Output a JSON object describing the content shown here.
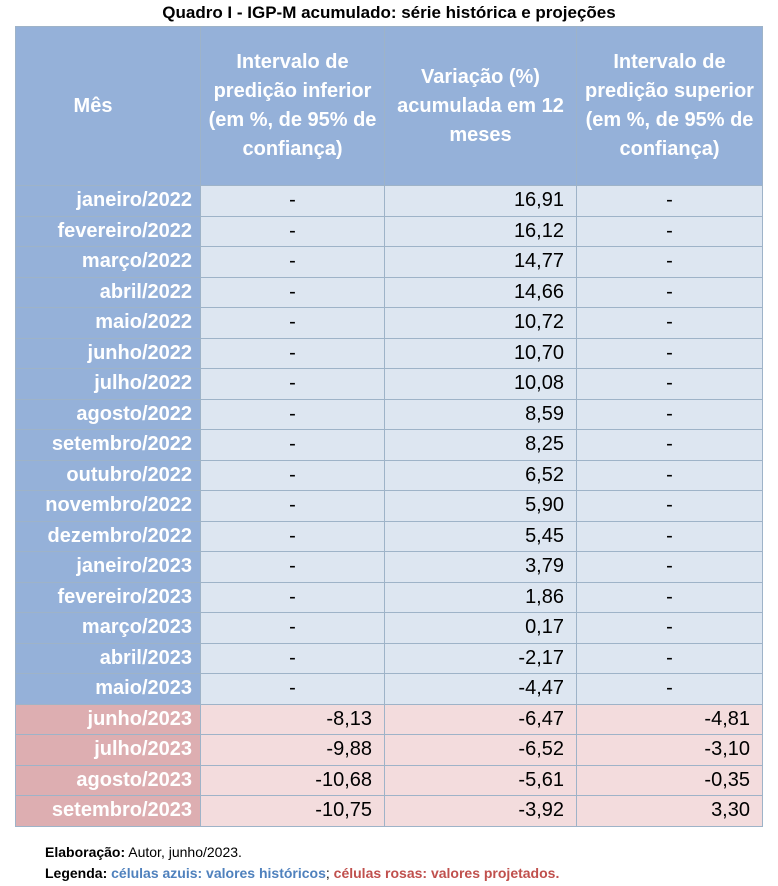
{
  "title": "Quadro I - IGP-M acumulado: série histórica e projeções",
  "headers": {
    "mes": "Mês",
    "inferior": "Intervalo de predição inferior (em %, de 95% de confiança)",
    "variacao": "Variação (%) acumulada em 12 meses",
    "superior": "Intervalo de predição superior (em %, de 95% de confiança)"
  },
  "rows": [
    {
      "mes": "janeiro/2022",
      "inferior": "-",
      "variacao": "16,91",
      "superior": "-",
      "kind": "hist"
    },
    {
      "mes": "fevereiro/2022",
      "inferior": "-",
      "variacao": "16,12",
      "superior": "-",
      "kind": "hist"
    },
    {
      "mes": "março/2022",
      "inferior": "-",
      "variacao": "14,77",
      "superior": "-",
      "kind": "hist"
    },
    {
      "mes": "abril/2022",
      "inferior": "-",
      "variacao": "14,66",
      "superior": "-",
      "kind": "hist"
    },
    {
      "mes": "maio/2022",
      "inferior": "-",
      "variacao": "10,72",
      "superior": "-",
      "kind": "hist"
    },
    {
      "mes": "junho/2022",
      "inferior": "-",
      "variacao": "10,70",
      "superior": "-",
      "kind": "hist"
    },
    {
      "mes": "julho/2022",
      "inferior": "-",
      "variacao": "10,08",
      "superior": "-",
      "kind": "hist"
    },
    {
      "mes": "agosto/2022",
      "inferior": "-",
      "variacao": "8,59",
      "superior": "-",
      "kind": "hist"
    },
    {
      "mes": "setembro/2022",
      "inferior": "-",
      "variacao": "8,25",
      "superior": "-",
      "kind": "hist"
    },
    {
      "mes": "outubro/2022",
      "inferior": "-",
      "variacao": "6,52",
      "superior": "-",
      "kind": "hist"
    },
    {
      "mes": "novembro/2022",
      "inferior": "-",
      "variacao": "5,90",
      "superior": "-",
      "kind": "hist"
    },
    {
      "mes": "dezembro/2022",
      "inferior": "-",
      "variacao": "5,45",
      "superior": "-",
      "kind": "hist"
    },
    {
      "mes": "janeiro/2023",
      "inferior": "-",
      "variacao": "3,79",
      "superior": "-",
      "kind": "hist"
    },
    {
      "mes": "fevereiro/2023",
      "inferior": "-",
      "variacao": "1,86",
      "superior": "-",
      "kind": "hist"
    },
    {
      "mes": "março/2023",
      "inferior": "-",
      "variacao": "0,17",
      "superior": "-",
      "kind": "hist"
    },
    {
      "mes": "abril/2023",
      "inferior": "-",
      "variacao": "-2,17",
      "superior": "-",
      "kind": "hist"
    },
    {
      "mes": "maio/2023",
      "inferior": "-",
      "variacao": "-4,47",
      "superior": "-",
      "kind": "hist"
    },
    {
      "mes": "junho/2023",
      "inferior": "-8,13",
      "variacao": "-6,47",
      "superior": "-4,81",
      "kind": "proj"
    },
    {
      "mes": "julho/2023",
      "inferior": "-9,88",
      "variacao": "-6,52",
      "superior": "-3,10",
      "kind": "proj"
    },
    {
      "mes": "agosto/2023",
      "inferior": "-10,68",
      "variacao": "-5,61",
      "superior": "-0,35",
      "kind": "proj"
    },
    {
      "mes": "setembro/2023",
      "inferior": "-10,75",
      "variacao": "-3,92",
      "superior": "3,30",
      "kind": "proj"
    }
  ],
  "notes": {
    "elaboracao_label": "Elaboração:",
    "elaboracao_text": " Autor, junho/2023.",
    "legenda_label": "Legenda:",
    "legenda_blue": "células azuis: valores históricos",
    "legenda_sep": "; ",
    "legenda_pink": "células rosas: valores projetados",
    "legenda_end": "."
  },
  "colors": {
    "header_blue": "#95b1d9",
    "cell_blue": "#dde6f1",
    "month_pink": "#ddaeb1",
    "cell_pink": "#f3dcdd",
    "legend_blue": "#4f81bd",
    "legend_red": "#c0504d"
  }
}
